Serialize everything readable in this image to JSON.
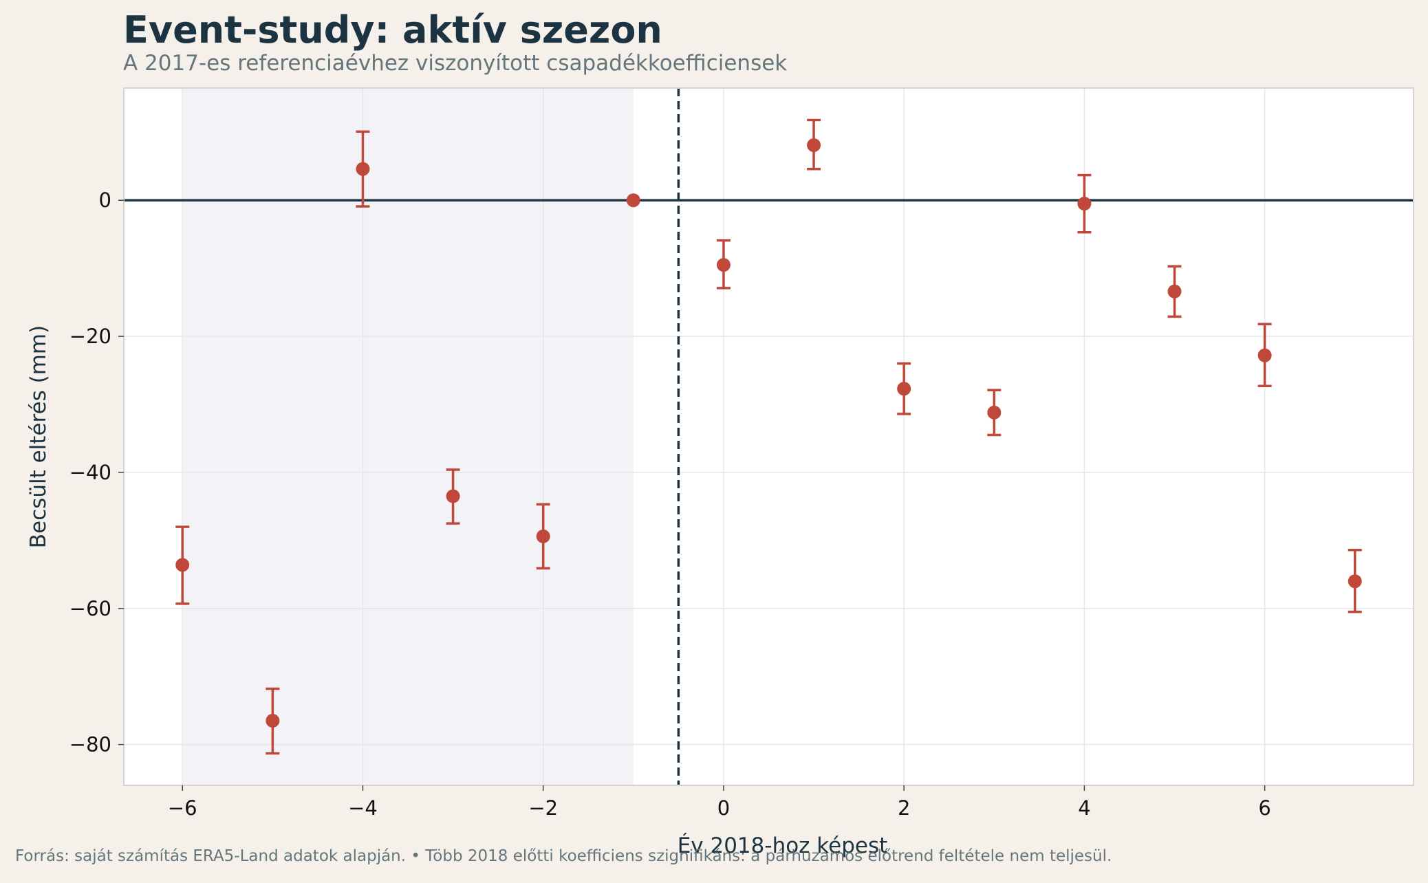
{
  "header": {
    "title": "Event-study: aktív szezon",
    "subtitle": "A 2017-es referenciaévhez viszonyított csapadékkoefficiensek"
  },
  "footer": {
    "source": "Forrás: saját számítás ERA5-Land adatok alapján.  •  Több 2018 előtti koefficiens szignifikáns: a párhuzamos előtrend feltétele nem teljesül."
  },
  "colors": {
    "background": "#f5f1ea",
    "plot_background": "#ffffff",
    "pre_period_shade": "#f3f2f7",
    "marker": "#c0483a",
    "reference_line": "#1c3441",
    "grid": "#e6e6e6"
  },
  "chart_data": {
    "type": "scatter",
    "xlabel": "Év 2018-hoz képest",
    "ylabel": "Becsült eltérés (mm)",
    "xlim": [
      -6.65,
      7.65
    ],
    "ylim": [
      -86,
      16.5
    ],
    "xticks": [
      -6,
      -4,
      -2,
      0,
      2,
      4,
      6
    ],
    "yticks": [
      0,
      -20,
      -40,
      -60,
      -80
    ],
    "grid": true,
    "shaded_region": {
      "x_from": -6,
      "x_to": -1
    },
    "vertical_line": {
      "x": -0.5,
      "style": "dashed"
    },
    "horizontal_line": {
      "y": 0,
      "style": "solid"
    },
    "points": [
      {
        "x": -6,
        "y": -53.6,
        "low": -59.3,
        "high": -48.0
      },
      {
        "x": -5,
        "y": -76.5,
        "low": -81.3,
        "high": -71.8
      },
      {
        "x": -4,
        "y": 4.6,
        "low": -0.9,
        "high": 10.1
      },
      {
        "x": -3,
        "y": -43.5,
        "low": -47.5,
        "high": -39.6
      },
      {
        "x": -2,
        "y": -49.4,
        "low": -54.1,
        "high": -44.7
      },
      {
        "x": -1,
        "y": 0.0,
        "low": 0.0,
        "high": 0.0
      },
      {
        "x": 0,
        "y": -9.5,
        "low": -12.9,
        "high": -5.9
      },
      {
        "x": 1,
        "y": 8.1,
        "low": 4.6,
        "high": 11.8
      },
      {
        "x": 2,
        "y": -27.7,
        "low": -31.4,
        "high": -24.0
      },
      {
        "x": 3,
        "y": -31.2,
        "low": -34.5,
        "high": -27.9
      },
      {
        "x": 4,
        "y": -0.5,
        "low": -4.7,
        "high": 3.7
      },
      {
        "x": 5,
        "y": -13.4,
        "low": -17.1,
        "high": -9.7
      },
      {
        "x": 6,
        "y": -22.8,
        "low": -27.3,
        "high": -18.2
      },
      {
        "x": 7,
        "y": -56.0,
        "low": -60.5,
        "high": -51.4
      }
    ]
  }
}
